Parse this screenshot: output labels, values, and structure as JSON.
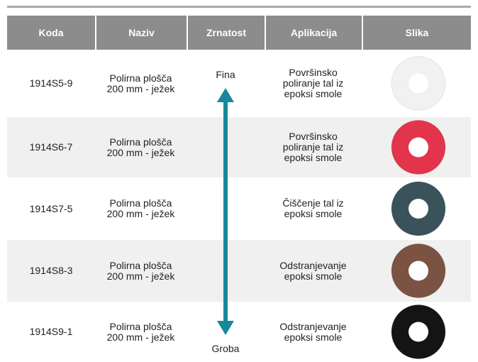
{
  "table": {
    "header": [
      "Koda",
      "Naziv",
      "Zrnatost",
      "Aplikacija",
      "Slika"
    ],
    "grain_top": "Fina",
    "grain_bottom": "Groba",
    "rows": [
      {
        "code": "1914S5-9",
        "name": [
          "Polirna plošča",
          "200 mm - ježek"
        ],
        "application": [
          "Površinsko",
          "poliranje tal iz",
          "epoksi smole"
        ],
        "image_color": "#f1f1f1"
      },
      {
        "code": "1914S6-7",
        "name": [
          "Polirna plošča",
          "200 mm - ježek"
        ],
        "application": [
          "Površinsko",
          "poliranje tal iz",
          "epoksi smole"
        ],
        "image_color": "#e2354b"
      },
      {
        "code": "1914S7-5",
        "name": [
          "Polirna plošča",
          "200 mm - ježek"
        ],
        "application": [
          "Čiščenje tal iz",
          "epoksi smole"
        ],
        "image_color": "#3a535b"
      },
      {
        "code": "1914S8-3",
        "name": [
          "Polirna plošča",
          "200 mm - ježek"
        ],
        "application": [
          "Odstranjevanje",
          "epoksi smole"
        ],
        "image_color": "#7a5343"
      },
      {
        "code": "1914S9-1",
        "name": [
          "Polirna plošča",
          "200 mm - ježek"
        ],
        "application": [
          "Odstranjevanje",
          "epoksi smole"
        ],
        "image_color": "#141414"
      }
    ]
  }
}
